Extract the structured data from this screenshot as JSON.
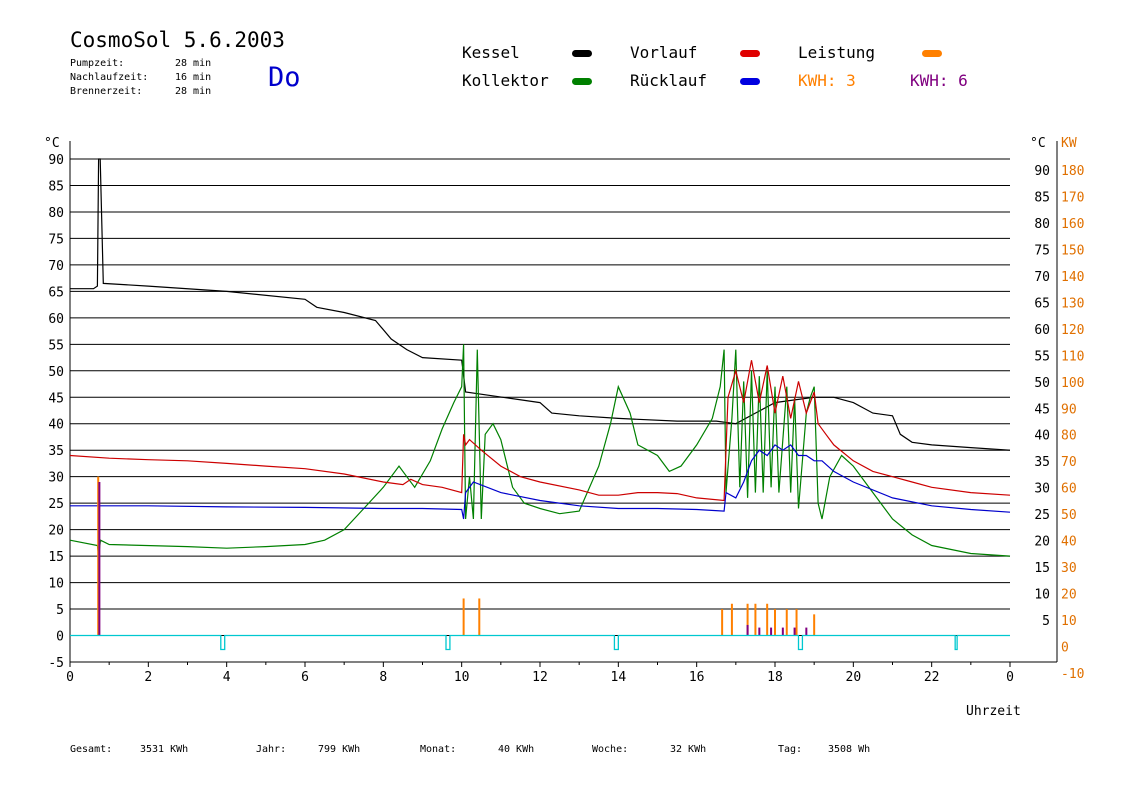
{
  "header": {
    "title": "CosmoSol 5.6.2003",
    "day": "Do",
    "times": [
      {
        "label": "Pumpzeit:",
        "value": "28 min"
      },
      {
        "label": "Nachlaufzeit:",
        "value": "16 min"
      },
      {
        "label": "Brennerzeit:",
        "value": "28 min"
      }
    ]
  },
  "legend": {
    "kessel": {
      "label": "Kessel",
      "color": "#000000"
    },
    "kollektor": {
      "label": "Kollektor",
      "color": "#008000"
    },
    "vorlauf": {
      "label": "Vorlauf",
      "color": "#e00000"
    },
    "ruecklauf": {
      "label": "Rücklauf",
      "color": "#0000e0"
    },
    "leistung": {
      "label": "Leistung",
      "color": "#ff8000"
    },
    "kwh1": {
      "label": "KWH: 3",
      "color": "#ff8000"
    },
    "kwh2": {
      "label": "KWH: 6",
      "color": "#800080"
    }
  },
  "footer": [
    {
      "label": "Gesamt:",
      "value": "3531 KWh"
    },
    {
      "label": "Jahr:",
      "value": "799 KWh"
    },
    {
      "label": "Monat:",
      "value": "40 KWh"
    },
    {
      "label": "Woche:",
      "value": "32 KWh"
    },
    {
      "label": "Tag:",
      "value": "3508 Wh"
    }
  ],
  "chart_data": {
    "type": "line",
    "title": "CosmoSol 5.6.2003",
    "xlabel": "Uhrzeit",
    "ylabel_left": "°C",
    "ylabel_right_temp": "°C",
    "ylabel_right_power": "KW",
    "xlim": [
      0,
      24
    ],
    "ylim": [
      -5,
      90
    ],
    "y2lim": [
      -10,
      180
    ],
    "x_ticks": [
      "0",
      "2",
      "4",
      "6",
      "8",
      "10",
      "12",
      "14",
      "16",
      "18",
      "20",
      "22",
      "0"
    ],
    "y_ticks": [
      -5,
      0,
      5,
      10,
      15,
      20,
      25,
      30,
      35,
      40,
      45,
      50,
      55,
      60,
      65,
      70,
      75,
      80,
      85,
      90
    ],
    "y_ticks_right_temp": [
      5,
      10,
      15,
      20,
      25,
      30,
      35,
      40,
      45,
      50,
      55,
      60,
      65,
      70,
      75,
      80,
      85,
      90
    ],
    "y_ticks_right_power": [
      -10,
      0,
      10,
      20,
      30,
      40,
      50,
      60,
      70,
      80,
      90,
      100,
      110,
      120,
      130,
      140,
      150,
      160,
      170,
      180
    ],
    "grid": true,
    "series": [
      {
        "name": "Kessel",
        "color": "#000000",
        "points": [
          [
            0,
            65.5
          ],
          [
            0.6,
            65.5
          ],
          [
            0.7,
            66
          ],
          [
            0.73,
            90
          ],
          [
            0.77,
            90
          ],
          [
            0.85,
            66.5
          ],
          [
            2,
            66
          ],
          [
            4,
            65
          ],
          [
            6,
            63.5
          ],
          [
            6.3,
            62
          ],
          [
            7,
            61
          ],
          [
            7.8,
            59.5
          ],
          [
            8.2,
            56
          ],
          [
            8.6,
            54
          ],
          [
            9,
            52.5
          ],
          [
            10,
            52
          ],
          [
            10.1,
            46
          ],
          [
            12,
            44
          ],
          [
            12.3,
            42
          ],
          [
            13,
            41.5
          ],
          [
            14,
            41
          ],
          [
            15.5,
            40.5
          ],
          [
            16.5,
            40.5
          ],
          [
            17,
            40
          ],
          [
            17.5,
            42
          ],
          [
            18,
            44
          ],
          [
            18.5,
            44.5
          ],
          [
            19,
            45
          ],
          [
            19.5,
            45
          ],
          [
            20,
            44
          ],
          [
            20.5,
            42
          ],
          [
            21,
            41.5
          ],
          [
            21.2,
            38
          ],
          [
            21.5,
            36.5
          ],
          [
            22,
            36
          ],
          [
            23,
            35.5
          ],
          [
            24,
            35
          ]
        ]
      },
      {
        "name": "Kollektor",
        "color": "#008000",
        "points": [
          [
            0,
            18
          ],
          [
            0.7,
            17
          ],
          [
            0.73,
            15
          ],
          [
            0.78,
            18
          ],
          [
            1,
            17.2
          ],
          [
            3,
            16.8
          ],
          [
            4,
            16.5
          ],
          [
            5,
            16.8
          ],
          [
            6,
            17.2
          ],
          [
            6.5,
            18
          ],
          [
            7,
            20
          ],
          [
            7.5,
            24
          ],
          [
            8,
            28
          ],
          [
            8.4,
            32
          ],
          [
            8.6,
            30
          ],
          [
            8.8,
            28
          ],
          [
            9.2,
            33
          ],
          [
            9.5,
            39
          ],
          [
            9.8,
            44
          ],
          [
            10,
            47
          ],
          [
            10.05,
            55
          ],
          [
            10.1,
            22
          ],
          [
            10.2,
            30
          ],
          [
            10.3,
            22
          ],
          [
            10.4,
            54
          ],
          [
            10.5,
            22
          ],
          [
            10.6,
            38
          ],
          [
            10.8,
            40
          ],
          [
            11,
            37
          ],
          [
            11.3,
            28
          ],
          [
            11.6,
            25
          ],
          [
            12,
            24
          ],
          [
            12.5,
            23
          ],
          [
            13,
            23.5
          ],
          [
            13.5,
            32
          ],
          [
            13.8,
            40
          ],
          [
            14,
            47
          ],
          [
            14.3,
            42
          ],
          [
            14.5,
            36
          ],
          [
            15,
            34
          ],
          [
            15.3,
            31
          ],
          [
            15.6,
            32
          ],
          [
            16,
            36
          ],
          [
            16.4,
            41
          ],
          [
            16.6,
            47
          ],
          [
            16.7,
            54
          ],
          [
            16.75,
            27
          ],
          [
            16.9,
            41
          ],
          [
            17,
            54
          ],
          [
            17.1,
            28
          ],
          [
            17.2,
            48
          ],
          [
            17.3,
            26
          ],
          [
            17.4,
            50
          ],
          [
            17.5,
            27
          ],
          [
            17.6,
            49
          ],
          [
            17.7,
            27
          ],
          [
            17.8,
            50
          ],
          [
            17.9,
            28
          ],
          [
            18,
            47
          ],
          [
            18.1,
            27
          ],
          [
            18.3,
            47
          ],
          [
            18.4,
            27
          ],
          [
            18.5,
            45
          ],
          [
            18.6,
            24
          ],
          [
            18.8,
            42
          ],
          [
            18.9,
            45
          ],
          [
            19,
            47
          ],
          [
            19.1,
            25
          ],
          [
            19.2,
            22
          ],
          [
            19.4,
            30
          ],
          [
            19.7,
            34
          ],
          [
            20,
            32
          ],
          [
            20.5,
            27
          ],
          [
            21,
            22
          ],
          [
            21.5,
            19
          ],
          [
            22,
            17
          ],
          [
            23,
            15.5
          ],
          [
            24,
            15
          ]
        ]
      },
      {
        "name": "Vorlauf",
        "color": "#cc0000",
        "points": [
          [
            0,
            34
          ],
          [
            1,
            33.5
          ],
          [
            2,
            33.2
          ],
          [
            3,
            33
          ],
          [
            4,
            32.5
          ],
          [
            5,
            32
          ],
          [
            6,
            31.5
          ],
          [
            7,
            30.5
          ],
          [
            8,
            29
          ],
          [
            8.5,
            28.5
          ],
          [
            8.7,
            29.5
          ],
          [
            9,
            28.5
          ],
          [
            9.5,
            28
          ],
          [
            10,
            27
          ],
          [
            10.05,
            38
          ],
          [
            10.1,
            36
          ],
          [
            10.2,
            37
          ],
          [
            10.5,
            35
          ],
          [
            11,
            32
          ],
          [
            11.5,
            30
          ],
          [
            12,
            29
          ],
          [
            13,
            27.5
          ],
          [
            13.5,
            26.5
          ],
          [
            14,
            26.5
          ],
          [
            14.5,
            27
          ],
          [
            15,
            27
          ],
          [
            15.5,
            26.8
          ],
          [
            16,
            26
          ],
          [
            16.7,
            25.5
          ],
          [
            16.75,
            35
          ],
          [
            16.8,
            45
          ],
          [
            17,
            50
          ],
          [
            17.2,
            44
          ],
          [
            17.4,
            52
          ],
          [
            17.6,
            44
          ],
          [
            17.8,
            51
          ],
          [
            18,
            42
          ],
          [
            18.2,
            49
          ],
          [
            18.4,
            41
          ],
          [
            18.6,
            48
          ],
          [
            18.8,
            42
          ],
          [
            19,
            46
          ],
          [
            19.1,
            40
          ],
          [
            19.3,
            38
          ],
          [
            19.5,
            36
          ],
          [
            20,
            33
          ],
          [
            20.5,
            31
          ],
          [
            21,
            30
          ],
          [
            21.5,
            29
          ],
          [
            22,
            28
          ],
          [
            23,
            27
          ],
          [
            24,
            26.5
          ]
        ]
      },
      {
        "name": "Rücklauf",
        "color": "#0000cc",
        "points": [
          [
            0,
            24.5
          ],
          [
            2,
            24.5
          ],
          [
            4,
            24.3
          ],
          [
            6,
            24.2
          ],
          [
            8,
            24
          ],
          [
            9,
            24
          ],
          [
            10,
            23.8
          ],
          [
            10.05,
            22
          ],
          [
            10.1,
            27
          ],
          [
            10.3,
            29
          ],
          [
            11,
            27
          ],
          [
            12,
            25.5
          ],
          [
            13,
            24.5
          ],
          [
            14,
            24
          ],
          [
            15,
            24
          ],
          [
            16,
            23.8
          ],
          [
            16.7,
            23.5
          ],
          [
            16.75,
            27
          ],
          [
            17,
            26
          ],
          [
            17.2,
            29
          ],
          [
            17.4,
            33
          ],
          [
            17.6,
            35
          ],
          [
            17.8,
            34
          ],
          [
            18,
            36
          ],
          [
            18.2,
            35
          ],
          [
            18.4,
            36
          ],
          [
            18.6,
            34
          ],
          [
            18.8,
            34
          ],
          [
            19,
            33
          ],
          [
            19.2,
            33
          ],
          [
            19.5,
            31
          ],
          [
            20,
            29
          ],
          [
            21,
            26
          ],
          [
            22,
            24.5
          ],
          [
            23,
            23.8
          ],
          [
            24,
            23.3
          ]
        ]
      },
      {
        "name": "Leistung",
        "color": "#ff8000",
        "bars": [
          [
            0.72,
            30
          ],
          [
            10.05,
            7
          ],
          [
            10.45,
            7
          ],
          [
            16.65,
            5
          ],
          [
            16.9,
            6
          ],
          [
            17.3,
            6
          ],
          [
            17.5,
            6
          ],
          [
            17.8,
            6
          ],
          [
            18,
            5
          ],
          [
            18.3,
            5
          ],
          [
            18.55,
            5
          ],
          [
            19,
            4
          ]
        ]
      },
      {
        "name": "KWH",
        "color": "#800080",
        "bars": [
          [
            0.75,
            29
          ],
          [
            17.3,
            2
          ],
          [
            17.6,
            1.5
          ],
          [
            17.9,
            1.5
          ],
          [
            18.2,
            1.5
          ],
          [
            18.5,
            1.5
          ],
          [
            18.8,
            1.5
          ]
        ]
      },
      {
        "name": "Pumpe",
        "color": "#00c8d0",
        "level": 0,
        "pulses": [
          [
            3.85,
            3.95
          ],
          [
            9.6,
            9.7
          ],
          [
            13.9,
            14
          ],
          [
            18.6,
            18.7
          ],
          [
            22.6,
            22.65
          ]
        ]
      }
    ]
  }
}
